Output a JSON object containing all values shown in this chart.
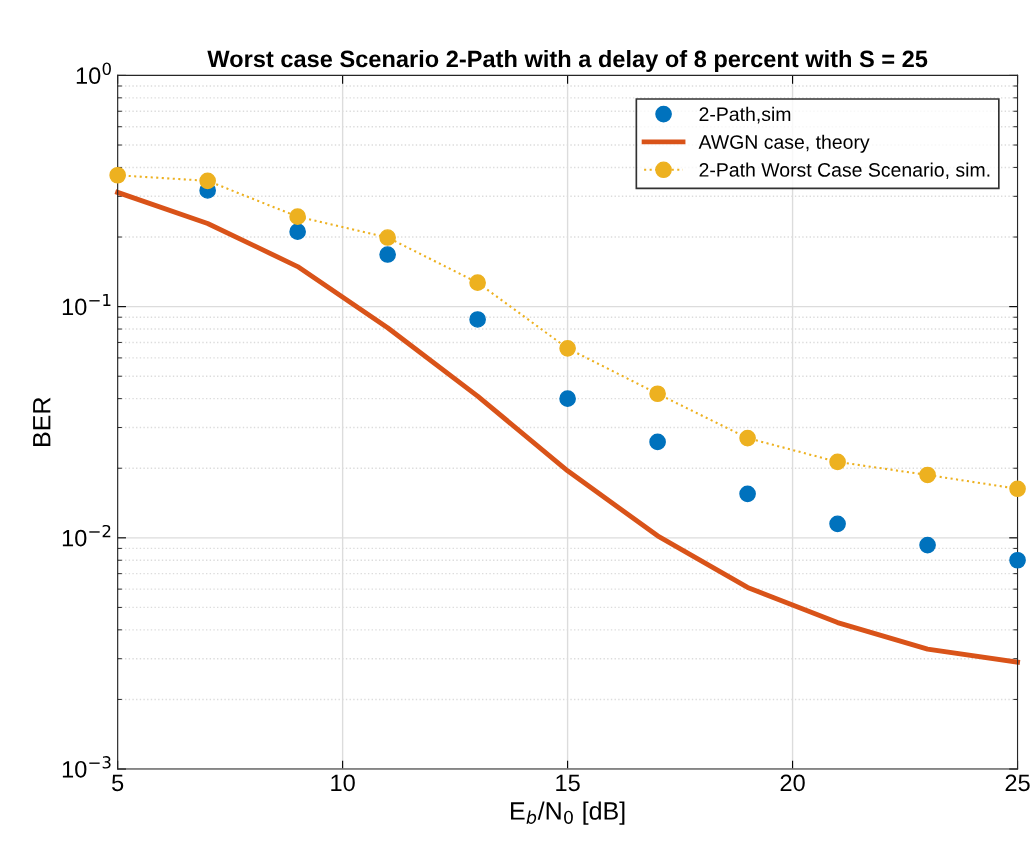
{
  "chart_data": {
    "type": "scatter",
    "title": "Worst case Scenario 2-Path with a delay of 8 percent with S = 25",
    "xlabel": "E$_{b}$/N$_{0}$ [dB]",
    "ylabel": "BER",
    "x": [
      5,
      7,
      9,
      11,
      13,
      15,
      17,
      19,
      21,
      23,
      25
    ],
    "series": [
      {
        "name": "2-Path,sim",
        "color": "#0072bd",
        "marker": "circle",
        "line_style": "none",
        "values": [
          null,
          0.318,
          0.211,
          0.168,
          0.088,
          0.04,
          0.026,
          0.0155,
          0.0115,
          0.0093,
          0.008
        ]
      },
      {
        "name": "AWGN case, theory",
        "type": "line",
        "color": "#d95319",
        "marker": "none",
        "line_style": "solid",
        "values": [
          0.312,
          0.229,
          0.149,
          0.081,
          0.041,
          0.0195,
          0.0102,
          0.0061,
          0.0043,
          0.0033,
          0.0029
        ]
      },
      {
        "name": "2-Path Worst Case Scenario, sim.",
        "type": "line",
        "color": "#edb120",
        "marker": "circle",
        "line_style": "dotted",
        "values": [
          0.37,
          0.35,
          0.245,
          0.199,
          0.127,
          0.066,
          0.042,
          0.027,
          0.0213,
          0.0187,
          0.0163
        ]
      }
    ],
    "log": "y",
    "xlim": [
      5,
      25
    ],
    "xticks": [
      5,
      10,
      15,
      20,
      25
    ],
    "ylim": [
      0.001,
      1
    ],
    "yticks": [
      {
        "value": 0.001,
        "label": "10$^{−3}$"
      },
      {
        "value": 0.01,
        "label": "10$^{−2}$"
      },
      {
        "value": 0.1,
        "label": "10$^{−1}$"
      },
      {
        "value": 1,
        "label": "10$^{0}$"
      }
    ],
    "grid": true,
    "legend": "top right"
  }
}
